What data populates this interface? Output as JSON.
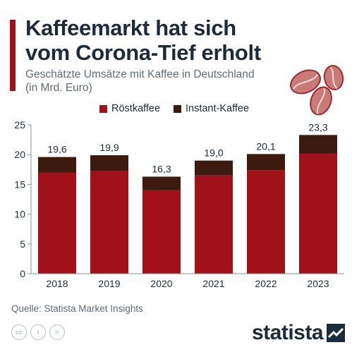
{
  "header": {
    "title_line1": "Kaffeemarkt hat sich",
    "title_line2": "vom Corona-Tief erholt",
    "subtitle_line1": "Geschätzte Umsätze mit Kaffee in Deutschland",
    "subtitle_line2": "(in Mrd. Euro)"
  },
  "colors": {
    "accent": "#a0111a",
    "roest": "#a0111a",
    "instant": "#3c1a0e",
    "axis": "#8a9096",
    "bean": "#c97b78",
    "bean_outline": "#9c2a2e"
  },
  "icons": [
    "coffee-beans-icon",
    "cc-icon",
    "person-icon",
    "equals-icon",
    "statista-logo-icon"
  ],
  "legend": {
    "roest_label": "Röstkaffee",
    "instant_label": "Instant-Kaffee"
  },
  "chart_data": {
    "type": "bar",
    "stacked": true,
    "categories": [
      "2018",
      "2019",
      "2020",
      "2021",
      "2022",
      "2023"
    ],
    "series": [
      {
        "name": "Röstkaffee",
        "values": [
          17.0,
          17.3,
          14.0,
          16.5,
          17.4,
          20.2
        ]
      },
      {
        "name": "Instant-Kaffee",
        "values": [
          2.6,
          2.6,
          2.3,
          2.5,
          2.7,
          3.1
        ]
      }
    ],
    "totals": [
      19.6,
      19.9,
      16.3,
      19.0,
      20.1,
      23.3
    ],
    "total_labels": [
      "19,6",
      "19,9",
      "16,3",
      "19,0",
      "20,1",
      "23,3"
    ],
    "ylim": [
      0,
      25
    ],
    "yticks": [
      0,
      5,
      10,
      15,
      20,
      25
    ],
    "grid": false,
    "legend_position": "top"
  },
  "footer": {
    "source": "Quelle: Statista Market Insights",
    "cc_labels": [
      "cc",
      "i",
      "="
    ],
    "brand": "statista"
  }
}
